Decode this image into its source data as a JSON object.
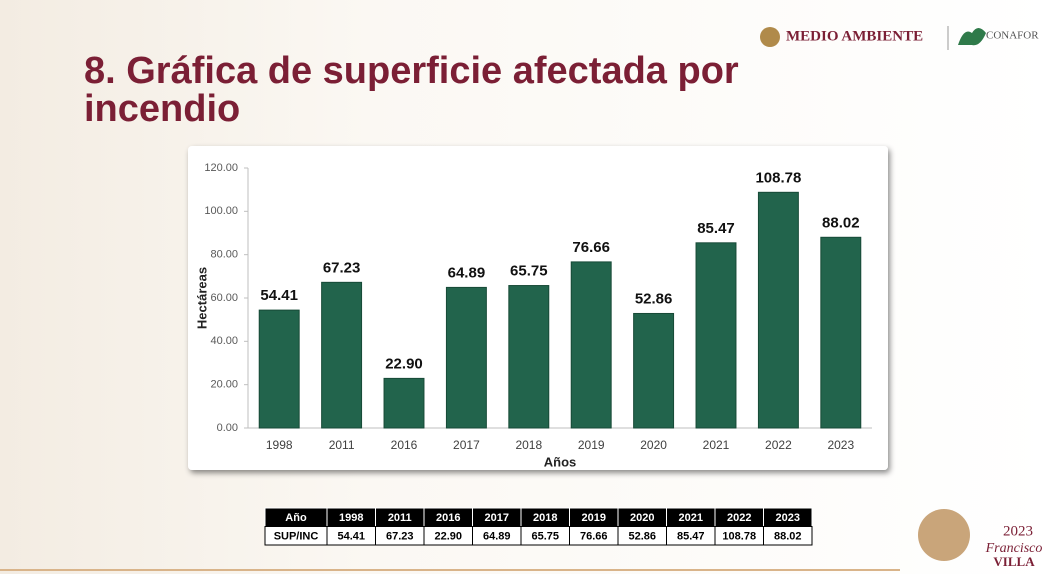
{
  "header": {
    "title": "8. Gráfica de superficie afectada por incendio",
    "logo_left": "MEDIO AMBIENTE",
    "logo_right": "CONAFOR",
    "badge_year": "2023",
    "badge_name": "Francisco",
    "badge_surname": "VILLA"
  },
  "chart_data": {
    "type": "bar",
    "categories": [
      "1998",
      "2011",
      "2016",
      "2017",
      "2018",
      "2019",
      "2020",
      "2021",
      "2022",
      "2023"
    ],
    "values": [
      54.41,
      67.23,
      22.9,
      64.89,
      65.75,
      76.66,
      52.86,
      85.47,
      108.78,
      88.02
    ],
    "value_labels": [
      "54.41",
      "67.23",
      "22.90",
      "64.89",
      "65.75",
      "76.66",
      "52.86",
      "85.47",
      "108.78",
      "88.02"
    ],
    "color": "#22644c",
    "ylim": [
      0,
      120
    ],
    "yticks": [
      {
        "value": 0,
        "label": "0.00"
      },
      {
        "value": 20,
        "label": "20.00"
      },
      {
        "value": 40,
        "label": "40.00"
      },
      {
        "value": 60,
        "label": "60.00"
      },
      {
        "value": 80,
        "label": "80.00"
      },
      {
        "value": 100,
        "label": "100.00"
      },
      {
        "value": 120,
        "label": "120.00"
      }
    ],
    "ylabel": "Hectáreas",
    "xlabel": "Años",
    "grid": false
  },
  "table": {
    "header": [
      "Año",
      "1998",
      "2011",
      "2016",
      "2017",
      "2018",
      "2019",
      "2020",
      "2021",
      "2022",
      "2023"
    ],
    "rows": [
      [
        "SUP/INC",
        "54.41",
        "67.23",
        "22.90",
        "64.89",
        "65.75",
        "76.66",
        "52.86",
        "85.47",
        "108.78",
        "88.02"
      ]
    ]
  }
}
